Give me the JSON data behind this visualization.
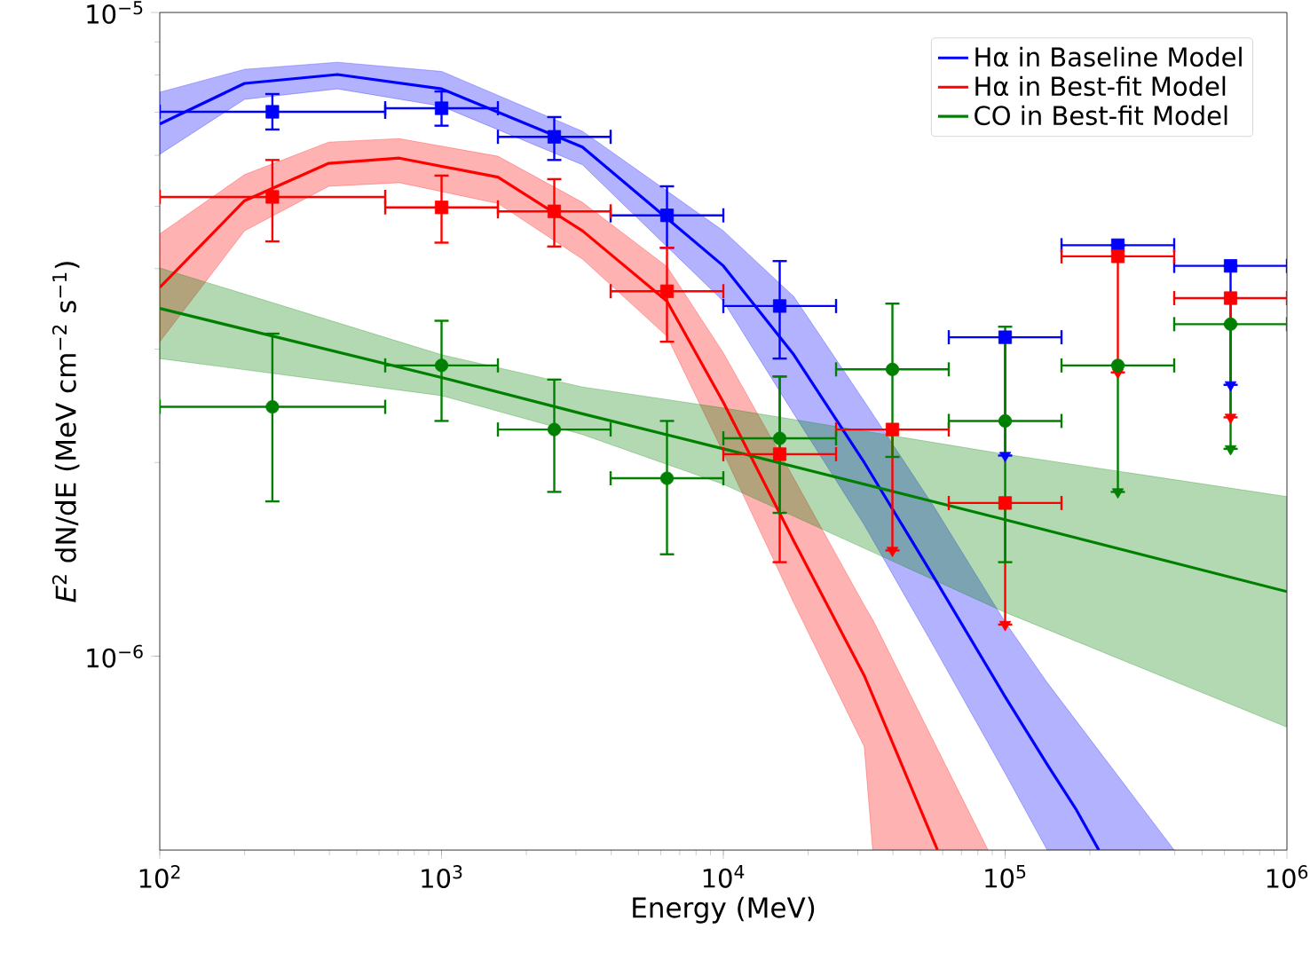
{
  "chart_data": {
    "type": "line",
    "xlabel": "Energy (MeV)",
    "ylabel": "*E*$^{2}$ dN/dE (MeV cm$^{−2}$ s$^{−1}$)",
    "log": "xy",
    "xlim": [
      100,
      1000000
    ],
    "ylim": [
      5e-07,
      1e-05
    ],
    "xticks": [
      {
        "value": 100,
        "label": "10$^{2}$"
      },
      {
        "value": 1000,
        "label": "10$^{3}$"
      },
      {
        "value": 10000,
        "label": "10$^{4}$"
      },
      {
        "value": 100000,
        "label": "10$^{5}$"
      },
      {
        "value": 1000000,
        "label": "10$^{6}$"
      }
    ],
    "yticks": [
      {
        "value": 1e-06,
        "label": "10$^{−6}$"
      },
      {
        "value": 1e-05,
        "label": "10$^{−5}$"
      }
    ],
    "legend": "top right",
    "series": [
      {
        "name": "Hα in Baseline Model",
        "color": "#0000ff",
        "line_style": "solid",
        "x": [
          100,
          200,
          427,
          1000,
          3162,
          10000,
          17783,
          31623,
          56234,
          100000,
          141000,
          177828,
          215000,
          398000
        ],
        "values": [
          6.71e-06,
          7.76e-06,
          8.01e-06,
          7.61e-06,
          6.18e-06,
          4.04e-06,
          2.94e-06,
          2e-06,
          1.32e-06,
          8.65e-07,
          6.79e-07,
          5.8e-07,
          5e-07,
          null
        ],
        "upper": [
          7.52e-06,
          8.16e-06,
          8.37e-06,
          8.1e-06,
          6.54e-06,
          4.58e-06,
          3.62e-06,
          2.49e-06,
          1.7e-06,
          1.13e-06,
          9.1e-07,
          null,
          null,
          5e-07
        ],
        "lower": [
          6.02e-06,
          7.33e-06,
          7.61e-06,
          7.15e-06,
          5.8e-06,
          3.56e-06,
          2.38e-06,
          1.6e-06,
          1.03e-06,
          6.58e-07,
          5e-07,
          null,
          null,
          5e-07
        ]
      },
      {
        "name": "Hα in Best-fit Model",
        "color": "#ff0000",
        "line_style": "solid",
        "x": [
          100,
          200,
          398,
          708,
          1585,
          3162,
          6310,
          10000,
          17783,
          31623,
          33884,
          57544,
          87000
        ],
        "values": [
          3.74e-06,
          5.1e-06,
          5.83e-06,
          5.94e-06,
          5.55e-06,
          4.58e-06,
          3.56e-06,
          2.48e-06,
          1.51e-06,
          9.33e-07,
          8.69e-07,
          5e-07,
          null
        ],
        "upper": [
          4.53e-06,
          5.6e-06,
          6.29e-06,
          6.37e-06,
          5.98e-06,
          5.07e-06,
          4.03e-06,
          2.96e-06,
          1.89e-06,
          1.2e-06,
          1.14e-06,
          null,
          5e-07
        ],
        "lower": [
          3.08e-06,
          4.58e-06,
          5.37e-06,
          5.44e-06,
          5.05e-06,
          4.14e-06,
          3.14e-06,
          2.07e-06,
          1.21e-06,
          7.24e-07,
          5e-07,
          null,
          5e-07
        ]
      },
      {
        "name": "CO in Best-fit Model",
        "color": "#008000",
        "line_style": "solid",
        "x": [
          100,
          1000,
          3162,
          10000,
          100000,
          1000000
        ],
        "values": [
          3.47e-06,
          2.71e-06,
          2.38e-06,
          2.1e-06,
          1.63e-06,
          1.26e-06
        ],
        "upper": [
          4.01e-06,
          2.94e-06,
          2.62e-06,
          2.43e-06,
          2.06e-06,
          1.77e-06
        ],
        "lower": [
          2.9e-06,
          2.54e-06,
          2.21e-06,
          1.85e-06,
          1.17e-06,
          7.76e-07
        ]
      },
      {
        "type": "scatter",
        "color": "#0000ff",
        "marker": "square",
        "x": [
          251,
          1000,
          2512,
          6310,
          15849,
          100000,
          251189,
          630957
        ],
        "values": [
          7.01e-06,
          7.1e-06,
          6.41e-06,
          4.84e-06,
          3.5e-06,
          3.13e-06,
          4.35e-06,
          4.04e-06
        ],
        "errors": [
          [
            6.58e-06,
            7.47e-06
          ],
          [
            6.67e-06,
            7.54e-06
          ],
          [
            5.9e-06,
            6.88e-06
          ],
          [
            4.31e-06,
            5.37e-06
          ],
          [
            2.9e-06,
            4.11e-06
          ],
          [
            2.05e-06,
            3.13e-06
          ],
          null,
          [
            2.64e-06,
            4.04e-06
          ]
        ],
        "xerrors": [
          [
            100,
            631
          ],
          [
            631,
            1585
          ],
          [
            1585,
            3981
          ],
          [
            3981,
            10000
          ],
          [
            10000,
            25119
          ],
          [
            63096,
            158489
          ],
          [
            158489,
            398107
          ],
          [
            398107,
            1000000
          ]
        ]
      },
      {
        "type": "scatter",
        "color": "#ff0000",
        "marker": "square",
        "x": [
          251,
          1000,
          2512,
          6310,
          15849,
          39811,
          100000,
          251189,
          630957
        ],
        "values": [
          5.17e-06,
          4.98e-06,
          4.91e-06,
          3.69e-06,
          2.06e-06,
          2.25e-06,
          1.73e-06,
          4.18e-06,
          3.6e-06
        ],
        "errors": [
          [
            4.41e-06,
            5.9e-06
          ],
          [
            4.39e-06,
            5.58e-06
          ],
          [
            4.33e-06,
            5.51e-06
          ],
          [
            3.08e-06,
            4.31e-06
          ],
          [
            1.4e-06,
            2.72e-06
          ],
          [
            1.46e-06,
            2.25e-06
          ],
          [
            1.12e-06,
            1.73e-06
          ],
          [
            2.76e-06,
            4.18e-06
          ],
          [
            2.35e-06,
            3.6e-06
          ]
        ],
        "xerrors": [
          [
            100,
            631
          ],
          [
            631,
            1585
          ],
          [
            1585,
            3981
          ],
          [
            3981,
            10000
          ],
          [
            10000,
            25119
          ],
          [
            25119,
            63096
          ],
          [
            63096,
            158489
          ],
          [
            158489,
            398107
          ],
          [
            398107,
            1000000
          ]
        ]
      },
      {
        "type": "scatter",
        "color": "#008000",
        "marker": "circle",
        "x": [
          251,
          1000,
          2512,
          6310,
          15849,
          39811,
          100000,
          251189,
          630957
        ],
        "values": [
          2.44e-06,
          2.83e-06,
          2.25e-06,
          1.89e-06,
          2.18e-06,
          2.79e-06,
          2.32e-06,
          2.83e-06,
          3.28e-06
        ],
        "errors": [
          [
            1.74e-06,
            3.17e-06
          ],
          [
            2.32e-06,
            3.32e-06
          ],
          [
            1.8e-06,
            2.69e-06
          ],
          [
            1.44e-06,
            2.32e-06
          ],
          [
            1.67e-06,
            2.72e-06
          ],
          [
            2.04e-06,
            3.53e-06
          ],
          [
            1.4e-06,
            3.25e-06
          ],
          [
            1.8e-06,
            2.83e-06
          ],
          [
            2.1e-06,
            3.28e-06
          ]
        ],
        "xerrors": [
          [
            100,
            631
          ],
          [
            631,
            1585
          ],
          [
            1585,
            3981
          ],
          [
            3981,
            10000
          ],
          [
            10000,
            25119
          ],
          [
            25119,
            63096
          ],
          [
            63096,
            158489
          ],
          [
            158489,
            398107
          ],
          [
            398107,
            1000000
          ]
        ]
      },
      {
        "type": "scatter",
        "color": "#0000ff",
        "marker": "triangle",
        "x": [
          100000,
          251189,
          630957
        ],
        "values": [
          2.05e-06,
          null,
          2.64e-06
        ]
      },
      {
        "type": "scatter",
        "color": "#ff0000",
        "marker": "triangle",
        "x": [
          39811,
          100000,
          251189,
          630957
        ],
        "values": [
          1.46e-06,
          1.12e-06,
          2.76e-06,
          2.35e-06
        ]
      },
      {
        "type": "scatter",
        "color": "#008000",
        "marker": "triangle",
        "x": [
          251189,
          630957
        ],
        "values": [
          1.8e-06,
          2.1e-06
        ]
      }
    ]
  }
}
